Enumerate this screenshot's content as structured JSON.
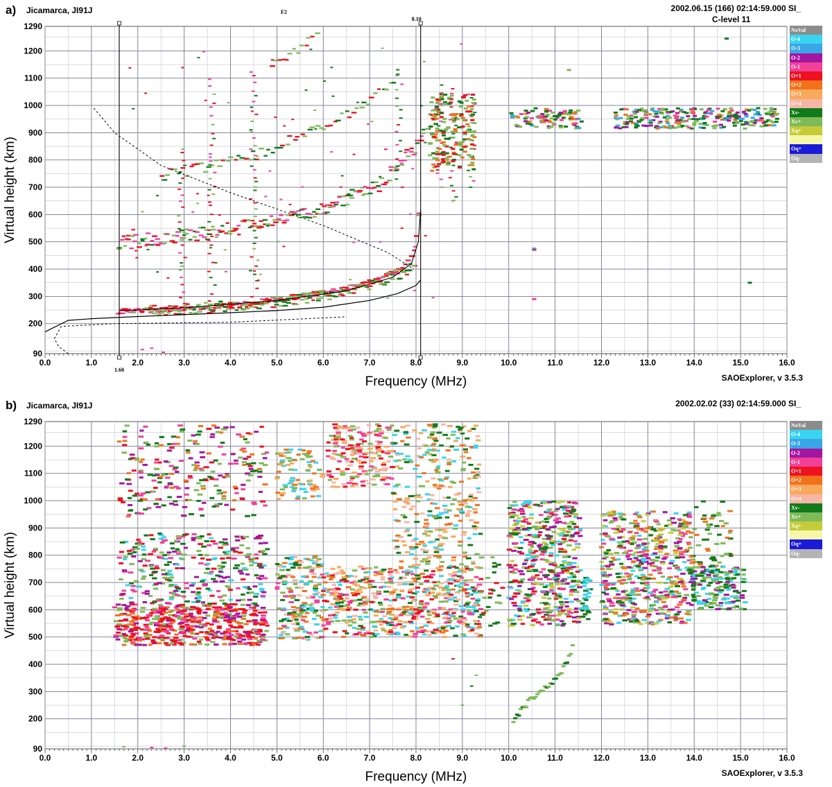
{
  "panels": [
    {
      "label": "a)",
      "station": "Jicamarca, JI91J",
      "timestamp": "2002.06.15 (166) 02:14:59.000 SI_",
      "clevel": "C-level 11",
      "version": "SAOExplorer, v 3.5.3"
    },
    {
      "label": "b)",
      "station": "Jicamarca, JI91J",
      "timestamp": "2002.02.02 (33) 02:14:59.000 SI_",
      "clevel": "",
      "version": "SAOExplorer, v 3.5.3"
    }
  ],
  "legend": [
    {
      "label": "NoVal",
      "color": "#8c8c8c"
    },
    {
      "label": "O-4",
      "color": "#38d4f0"
    },
    {
      "label": "O-3",
      "color": "#39a6e8"
    },
    {
      "label": "O-2",
      "color": "#a516a0"
    },
    {
      "label": "O-1",
      "color": "#f0409a"
    },
    {
      "label": "O+1",
      "color": "#ee1120"
    },
    {
      "label": "O+2",
      "color": "#f2721c"
    },
    {
      "label": "O+3",
      "color": "#f8a95c"
    },
    {
      "label": "O+4",
      "color": "#f6b6a6"
    },
    {
      "label": "Xv-",
      "color": "#117a1b"
    },
    {
      "label": "Xv+",
      "color": "#7fba58"
    },
    {
      "label": "Xq+",
      "color": "#c4cc3a"
    },
    {
      "label": "",
      "color": "#f6f7a8"
    },
    {
      "label": "Oq+",
      "color": "#1a1ad8"
    },
    {
      "label": "Oq-",
      "color": "#b4b4b4"
    }
  ],
  "chart_data": [
    {
      "type": "scatter",
      "title": "Jicamarca, JI91J ionogram 2002.06.15",
      "xlabel": "Frequency (MHz)",
      "ylabel": "Virtual height (km)",
      "xlim": [
        0,
        16
      ],
      "ylim": [
        90,
        1290
      ],
      "xticks": [
        "0.0",
        "1.0",
        "2.0",
        "3.0",
        "4.0",
        "5.0",
        "6.0",
        "7.0",
        "8.0",
        "9.0",
        "10.0",
        "11.0",
        "12.0",
        "13.0",
        "14.0",
        "15.0",
        "16.0"
      ],
      "yticks": [
        "90",
        "200",
        "300",
        "400",
        "500",
        "600",
        "700",
        "800",
        "900",
        "1000",
        "1100",
        "1200",
        "1290"
      ],
      "annotations": {
        "marker_left": "1.60",
        "marker_right": "8.10",
        "layer": "F2"
      },
      "markers": [
        1.6,
        8.1
      ],
      "traces": [
        {
          "name": "O-trace F2 1st hop",
          "points": [
            [
              1.6,
              245
            ],
            [
              2.5,
              250
            ],
            [
              3.5,
              262
            ],
            [
              4.5,
              278
            ],
            [
              5.5,
              300
            ],
            [
              6.5,
              328
            ],
            [
              7.2,
              360
            ],
            [
              7.7,
              400
            ],
            [
              7.95,
              470
            ],
            [
              8.05,
              545
            ],
            [
              8.1,
              630
            ]
          ]
        },
        {
          "name": "X-trace F2 1st hop",
          "points": [
            [
              2.2,
              248
            ],
            [
              3.5,
              258
            ],
            [
              5,
              280
            ],
            [
              6.5,
              318
            ],
            [
              7.6,
              378
            ],
            [
              8,
              415
            ]
          ]
        },
        {
          "name": "O-trace F2 2nd hop",
          "points": [
            [
              1.6,
              495
            ],
            [
              3,
              520
            ],
            [
              4.5,
              560
            ],
            [
              6,
              620
            ],
            [
              7.2,
              710
            ],
            [
              8.1,
              860
            ],
            [
              8.6,
              1050
            ]
          ]
        },
        {
          "name": "O-trace F2 3rd hop",
          "points": [
            [
              2.5,
              740
            ],
            [
              4.5,
              815
            ],
            [
              6,
              920
            ],
            [
              7,
              1010
            ],
            [
              7.7,
              1130
            ]
          ]
        },
        {
          "name": "O-trace F2 4th hop",
          "points": [
            [
              4.9,
              1150
            ],
            [
              5.5,
              1210
            ],
            [
              5.9,
              1260
            ]
          ]
        },
        {
          "name": "spread echoes",
          "points": [
            [
              10.5,
              950
            ],
            [
              12.5,
              950
            ],
            [
              13.5,
              950
            ],
            [
              14.5,
              950
            ],
            [
              15.5,
              945
            ]
          ]
        }
      ],
      "profile_solid": [
        [
          0,
          170
        ],
        [
          0.5,
          212
        ],
        [
          1,
          218
        ],
        [
          2,
          226
        ],
        [
          3,
          233
        ],
        [
          4,
          240
        ],
        [
          5,
          248
        ],
        [
          6,
          260
        ],
        [
          7,
          285
        ],
        [
          7.6,
          310
        ],
        [
          8,
          340
        ],
        [
          8.1,
          360
        ]
      ],
      "profile_dashed": [
        [
          0.5,
          90
        ],
        [
          0.3,
          115
        ],
        [
          0.2,
          145
        ],
        [
          0.35,
          190
        ],
        [
          1.3,
          930
        ],
        [
          1.05,
          990
        ]
      ]
    },
    {
      "type": "scatter",
      "title": "Jicamarca, JI91J ionogram 2002.02.02",
      "xlabel": "Frequency (MHz)",
      "ylabel": "Virtual height (km)",
      "xlim": [
        0,
        16
      ],
      "ylim": [
        90,
        1290
      ],
      "xticks": [
        "0.0",
        "1.0",
        "2.0",
        "3.0",
        "4.0",
        "5.0",
        "6.0",
        "7.0",
        "8.0",
        "9.0",
        "10.0",
        "11.0",
        "12.0",
        "13.0",
        "14.0",
        "15.0",
        "16.0"
      ],
      "yticks": [
        "90",
        "200",
        "300",
        "400",
        "500",
        "600",
        "700",
        "800",
        "900",
        "1000",
        "1100",
        "1200",
        "1290"
      ],
      "traces": [
        {
          "name": "spread F echoes low",
          "points": [
            [
              1.6,
              530
            ],
            [
              3,
              530
            ],
            [
              5,
              530
            ],
            [
              7,
              540
            ],
            [
              9,
              550
            ],
            [
              11,
              560
            ],
            [
              13,
              620
            ],
            [
              15,
              660
            ]
          ]
        },
        {
          "name": "spread F echoes high",
          "points": [
            [
              1.6,
              1000
            ],
            [
              3,
              1050
            ],
            [
              5,
              1080
            ],
            [
              7,
              1150
            ],
            [
              9,
              1100
            ]
          ]
        },
        {
          "name": "isolated trace",
          "points": [
            [
              10.1,
              200
            ],
            [
              10.6,
              290
            ],
            [
              11.1,
              360
            ],
            [
              11.4,
              470
            ]
          ]
        }
      ]
    }
  ]
}
